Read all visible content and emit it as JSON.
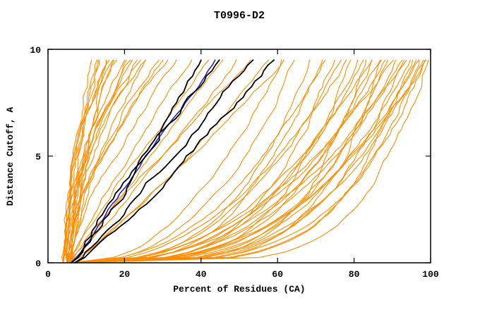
{
  "chart_data": {
    "type": "line",
    "title": "T0996-D2",
    "xlabel": "Percent of Residues (CA)",
    "ylabel": "Distance Cutoff, A",
    "xlim": [
      0,
      100
    ],
    "ylim": [
      0,
      10
    ],
    "x_ticks": [
      0,
      20,
      40,
      60,
      80,
      100
    ],
    "y_ticks": [
      0,
      5,
      10
    ],
    "grid": false,
    "legend": "none",
    "colors": {
      "model": "#FF8C00",
      "reference": "#000000",
      "highlight": "#2222CC",
      "axis": "#000000",
      "background": "#FFFFFF"
    },
    "curve_model": "cumulative curves: x(y) = x0 + (xtop - x0) * (y/10)^p ; each entry is [x0_percent_at_cutoff0, xtop_percent_at_cutoff10, shape_exponent]",
    "series": {
      "model_curves_orange": [
        [
          4,
          12,
          1.5
        ],
        [
          5,
          13,
          2.0
        ],
        [
          4,
          14,
          1.7
        ],
        [
          5,
          15,
          2.3
        ],
        [
          6,
          15,
          1.4
        ],
        [
          5,
          16,
          1.9
        ],
        [
          4,
          17,
          2.1
        ],
        [
          6,
          18,
          1.6
        ],
        [
          5,
          19,
          2.4
        ],
        [
          5,
          20,
          1.8
        ],
        [
          6,
          21,
          1.5
        ],
        [
          4,
          22,
          2.0
        ],
        [
          5,
          23,
          1.7
        ],
        [
          6,
          24,
          2.2
        ],
        [
          5,
          25,
          1.6
        ],
        [
          4,
          26,
          1.9
        ],
        [
          6,
          27,
          1.4
        ],
        [
          5,
          28,
          2.1
        ],
        [
          6,
          30,
          1.7
        ],
        [
          5,
          32,
          1.5
        ],
        [
          6,
          34,
          1.8
        ],
        [
          5,
          36,
          1.3
        ],
        [
          6,
          40,
          1.2
        ],
        [
          5,
          44,
          1.1
        ],
        [
          6,
          48,
          1.0
        ],
        [
          5,
          52,
          0.9
        ],
        [
          6,
          56,
          1.1
        ],
        [
          5,
          60,
          0.8
        ],
        [
          6,
          64,
          0.9
        ],
        [
          6,
          62,
          0.45
        ],
        [
          5,
          66,
          0.4
        ],
        [
          7,
          70,
          0.35
        ],
        [
          6,
          72,
          0.3
        ],
        [
          5,
          74,
          0.42
        ],
        [
          7,
          76,
          0.28
        ],
        [
          6,
          78,
          0.38
        ],
        [
          5,
          80,
          0.25
        ],
        [
          7,
          80,
          0.45
        ],
        [
          6,
          82,
          0.3
        ],
        [
          5,
          84,
          0.35
        ],
        [
          7,
          84,
          0.22
        ],
        [
          6,
          86,
          0.4
        ],
        [
          5,
          86,
          0.28
        ],
        [
          7,
          88,
          0.33
        ],
        [
          6,
          88,
          0.2
        ],
        [
          5,
          90,
          0.38
        ],
        [
          7,
          90,
          0.26
        ],
        [
          6,
          92,
          0.3
        ],
        [
          5,
          92,
          0.42
        ],
        [
          7,
          94,
          0.24
        ],
        [
          6,
          94,
          0.35
        ],
        [
          5,
          96,
          0.2
        ],
        [
          7,
          96,
          0.3
        ],
        [
          6,
          97,
          0.26
        ],
        [
          5,
          98,
          0.33
        ],
        [
          7,
          98,
          0.22
        ],
        [
          6,
          99,
          0.28
        ],
        [
          5,
          100,
          0.24
        ],
        [
          6,
          100,
          0.35
        ],
        [
          7,
          100,
          0.18
        ],
        [
          6,
          95,
          0.4
        ]
      ],
      "reference_curves_black": [
        [
          6,
          43,
          1.05
        ],
        [
          6,
          47,
          1.0
        ],
        [
          7,
          55,
          0.95
        ],
        [
          7,
          62,
          0.88
        ]
      ],
      "highlight_curve_blue": [
        [
          6,
          46,
          1.02
        ]
      ]
    }
  }
}
